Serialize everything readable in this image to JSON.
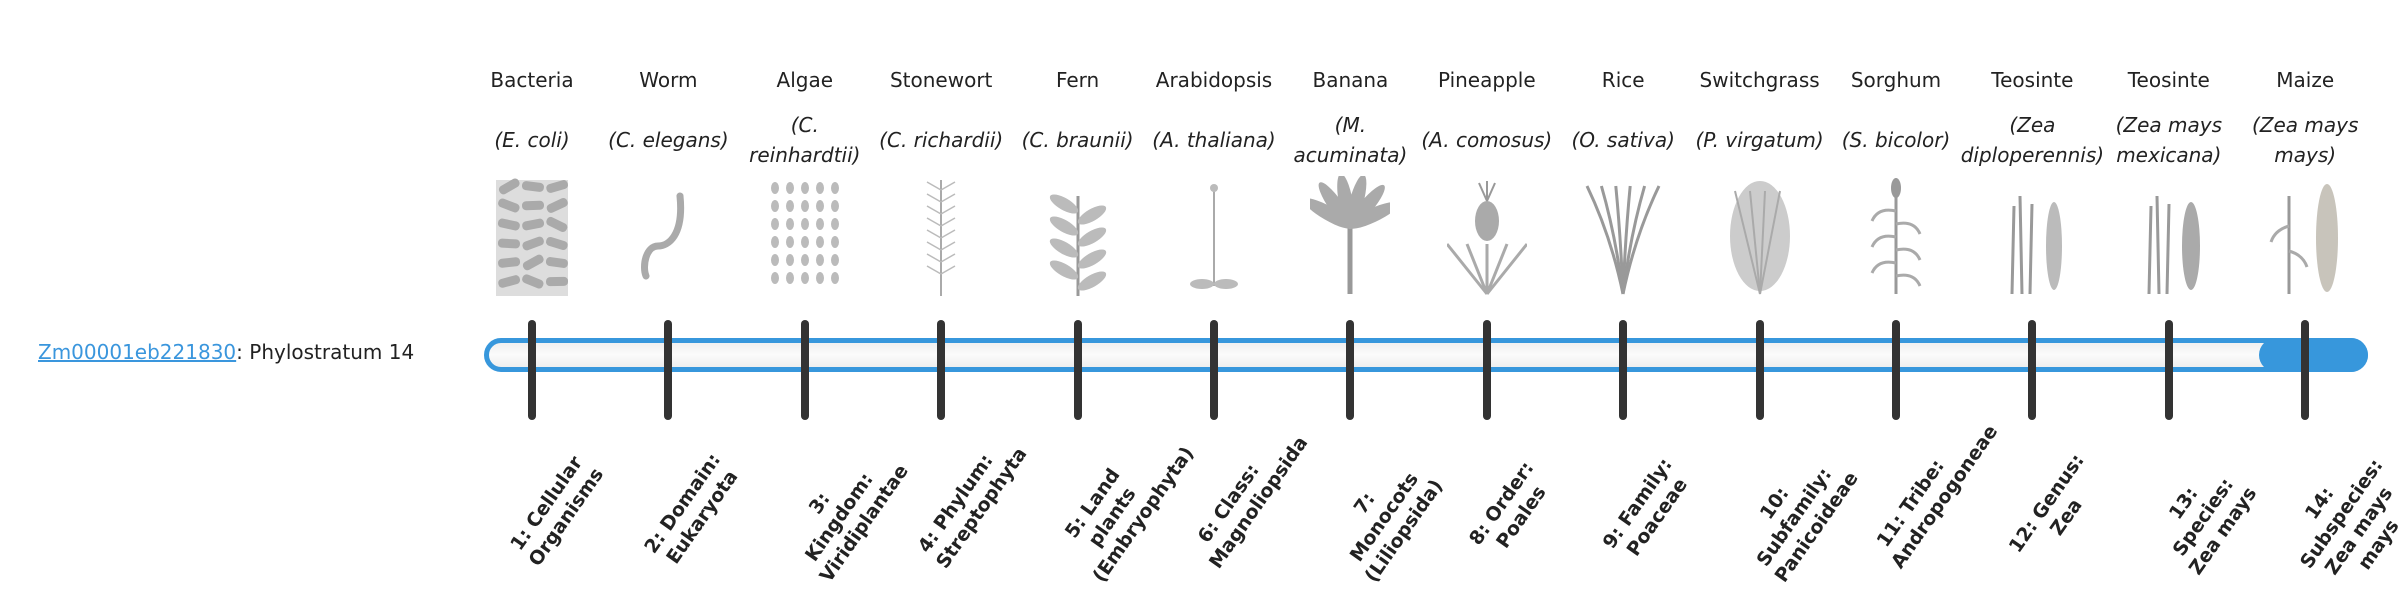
{
  "gene": {
    "id": "Zm00001eb221830",
    "suffix": ": Phylostratum 14"
  },
  "progress": {
    "value": 14,
    "max": 14,
    "fill_color": "#3797dc",
    "track_border_color": "#3797dc"
  },
  "organisms": [
    {
      "common": "Bacteria",
      "scientific": "(E. coli)",
      "stratum": "1: Cellular Organisms",
      "icon": "bacteria-icon"
    },
    {
      "common": "Worm",
      "scientific": "(C. elegans)",
      "stratum": "2: Domain: Eukaryota",
      "icon": "worm-icon"
    },
    {
      "common": "Algae",
      "scientific": "(C. reinhardtii)",
      "stratum": "3: Kingdom: Viridiplantae",
      "icon": "algae-icon"
    },
    {
      "common": "Stonewort",
      "scientific": "(C. richardii)",
      "stratum": "4: Phylum: Streptophyta",
      "icon": "stonewort-icon"
    },
    {
      "common": "Fern",
      "scientific": "(C. braunii)",
      "stratum": "5: Land plants (Embryophyta)",
      "icon": "fern-icon"
    },
    {
      "common": "Arabidopsis",
      "scientific": "(A. thaliana)",
      "stratum": "6: Class: Magnoliopsida",
      "icon": "arabidopsis-icon"
    },
    {
      "common": "Banana",
      "scientific": "(M. acuminata)",
      "stratum": "7: Monocots (Liliopsida)",
      "icon": "banana-icon"
    },
    {
      "common": "Pineapple",
      "scientific": "(A. comosus)",
      "stratum": "8: Order: Poales",
      "icon": "pineapple-icon"
    },
    {
      "common": "Rice",
      "scientific": "(O. sativa)",
      "stratum": "9: Family: Poaceae",
      "icon": "rice-icon"
    },
    {
      "common": "Switchgrass",
      "scientific": "(P. virgatum)",
      "stratum": "10: Subfamily: Panicoideae",
      "icon": "switchgrass-icon"
    },
    {
      "common": "Sorghum",
      "scientific": "(S. bicolor)",
      "stratum": "11: Tribe: Andropogoneae",
      "icon": "sorghum-icon"
    },
    {
      "common": "Teosinte",
      "scientific": "(Zea diploperennis)",
      "stratum": "12: Genus: Zea",
      "icon": "teosinte-icon"
    },
    {
      "common": "Teosinte",
      "scientific": "(Zea mays mexicana)",
      "stratum": "13: Species: Zea mays",
      "icon": "teosinte-mexicana-icon"
    },
    {
      "common": "Maize",
      "scientific": "(Zea mays mays)",
      "stratum": "14: Subspecies: Zea mays mays",
      "icon": "maize-icon"
    }
  ]
}
